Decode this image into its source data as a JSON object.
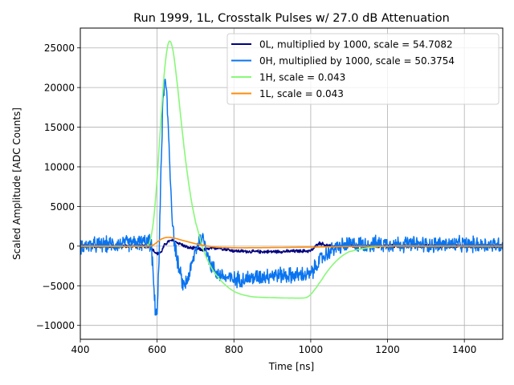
{
  "chart_data": {
    "type": "line",
    "title": "Run 1999, 1L, Crosstalk Pulses w/ 27.0 dB Attenuation",
    "xlabel": "Time [ns]",
    "ylabel": "Scaled Amplitude [ADC Counts]",
    "xlim": [
      400,
      1500
    ],
    "ylim": [
      -11750,
      27500
    ],
    "xticks": [
      400,
      600,
      800,
      1000,
      1200,
      1400
    ],
    "xtick_labels": [
      "400",
      "600",
      "800",
      "1000",
      "1200",
      "1400"
    ],
    "yticks": [
      -10000,
      -5000,
      0,
      5000,
      10000,
      15000,
      20000,
      25000
    ],
    "ytick_labels": [
      "−10000",
      "−5000",
      "0",
      "5000",
      "10000",
      "15000",
      "20000",
      "25000"
    ],
    "grid": true,
    "legend_position": "top-right",
    "series": [
      {
        "name": "0L, multiplied by 1000,  scale = 54.7082",
        "color": "#000080",
        "noise": 250,
        "x": [
          400,
          580,
          590,
          600,
          610,
          620,
          630,
          640,
          650,
          660,
          680,
          700,
          720,
          740,
          760,
          780,
          800,
          850,
          900,
          950,
          1000,
          1010,
          1020,
          1030,
          1040,
          1050,
          1100,
          1200,
          1300,
          1400,
          1500
        ],
        "y": [
          0,
          0,
          -500,
          -1000,
          -800,
          200,
          600,
          700,
          500,
          300,
          -200,
          -300,
          -500,
          -300,
          -200,
          -400,
          -600,
          -700,
          -700,
          -650,
          -600,
          -200,
          400,
          300,
          100,
          0,
          0,
          0,
          0,
          0,
          0
        ]
      },
      {
        "name": "0H, multiplied by 1000,  scale = 50.3754",
        "color": "#0a74f0",
        "noise": 1200,
        "x": [
          400,
          580,
          585,
          590,
          595,
          600,
          605,
          610,
          615,
          620,
          625,
          630,
          635,
          640,
          645,
          650,
          655,
          660,
          665,
          670,
          680,
          690,
          700,
          710,
          720,
          730,
          740,
          760,
          780,
          800,
          850,
          900,
          950,
          1000,
          1020,
          1040,
          1060,
          1080,
          1100,
          1200,
          1300,
          1400,
          1500
        ],
        "y": [
          0,
          500,
          0,
          -4000,
          -8000,
          -8500,
          -2000,
          10000,
          18000,
          21000,
          19000,
          14000,
          8000,
          3000,
          500,
          -1000,
          -2500,
          -3500,
          -4500,
          -5000,
          -4000,
          -2500,
          -500,
          800,
          1000,
          -500,
          -2500,
          -3500,
          -4000,
          -4200,
          -4000,
          -3600,
          -3700,
          -3600,
          -2000,
          -1000,
          -300,
          0,
          200,
          300,
          200,
          200,
          200
        ]
      },
      {
        "name": "1H,  scale = 0.043",
        "color": "#88f878",
        "noise": 0,
        "x": [
          400,
          570,
          580,
          590,
          600,
          610,
          620,
          630,
          640,
          650,
          660,
          670,
          680,
          690,
          700,
          720,
          740,
          760,
          780,
          800,
          820,
          850,
          900,
          950,
          980,
          990,
          1000,
          1010,
          1020,
          1040,
          1060,
          1080,
          1100,
          1150,
          1200,
          1300,
          1400,
          1500
        ],
        "y": [
          0,
          0,
          400,
          3000,
          8500,
          16000,
          22500,
          25700,
          25000,
          21500,
          17000,
          12500,
          8700,
          5500,
          3000,
          -400,
          -2600,
          -4000,
          -5000,
          -5700,
          -6100,
          -6400,
          -6500,
          -6550,
          -6550,
          -6450,
          -6100,
          -5500,
          -4800,
          -3400,
          -2200,
          -1300,
          -700,
          -200,
          0,
          0,
          0,
          0
        ]
      },
      {
        "name": "1L,  scale = 0.043",
        "color": "#ff8c0a",
        "noise": 0,
        "x": [
          400,
          580,
          590,
          600,
          610,
          620,
          630,
          640,
          650,
          660,
          680,
          700,
          720,
          740,
          760,
          800,
          850,
          900,
          950,
          1000,
          1050,
          1100,
          1200,
          1300,
          1400,
          1500
        ],
        "y": [
          0,
          0,
          150,
          500,
          850,
          1050,
          1100,
          1050,
          950,
          800,
          550,
          300,
          100,
          -50,
          -150,
          -200,
          -200,
          -180,
          -150,
          -120,
          -80,
          -40,
          0,
          0,
          0,
          0
        ]
      }
    ]
  }
}
